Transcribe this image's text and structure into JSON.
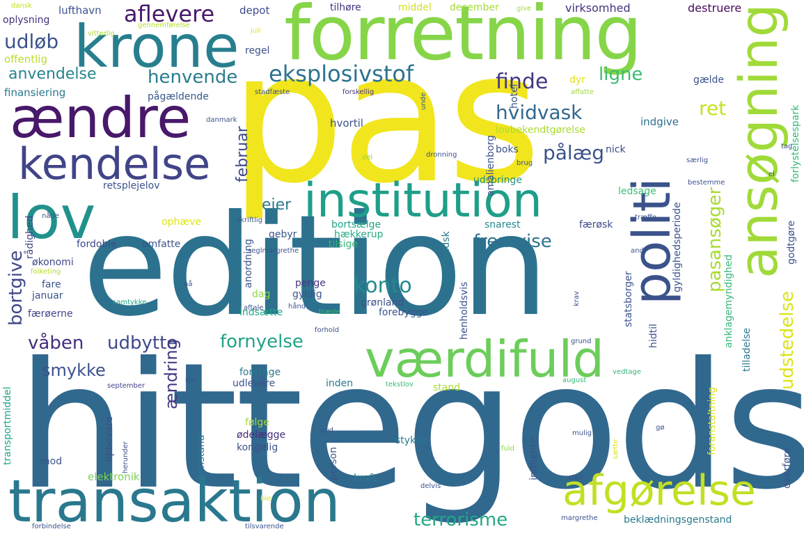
{
  "palette": {
    "yellow": "#f1e51d",
    "lime": "#a0da39",
    "green": "#75d054",
    "teal_green": "#2fb47c",
    "teal": "#20a486",
    "cyan": "#1f9e89",
    "blue_teal": "#277f8e",
    "steel": "#31688e",
    "blue": "#3b528b",
    "indigo": "#453781",
    "purple": "#48186a",
    "pale_yellow": "#dde318"
  },
  "words": [
    {
      "text": "hittegods",
      "color": "#31688e"
    },
    {
      "text": "edition",
      "color": "#2c728e"
    },
    {
      "text": "pas",
      "color": "#f1e51d"
    },
    {
      "text": "forretning",
      "color": "#86d549"
    },
    {
      "text": "krone",
      "color": "#277f8e"
    },
    {
      "text": "ændre",
      "color": "#48186a"
    },
    {
      "text": "kendelse",
      "color": "#414487"
    },
    {
      "text": "lov",
      "color": "#21918c"
    },
    {
      "text": "institution",
      "color": "#1f9e89"
    },
    {
      "text": "transaktion",
      "color": "#2a788e"
    },
    {
      "text": "værdifuld",
      "color": "#6ccd5a"
    },
    {
      "text": "afgørelse",
      "color": "#c2df23"
    },
    {
      "text": "ansøgning",
      "color": "#a0da39"
    },
    {
      "text": "politi",
      "color": "#3b528b"
    },
    {
      "text": "eksplosivstof",
      "color": "#2c728e"
    },
    {
      "text": "aflevere",
      "color": "#48186a"
    },
    {
      "text": "udløb",
      "color": "#3b528b"
    },
    {
      "text": "anvendelse",
      "color": "#25848e"
    },
    {
      "text": "henvende",
      "color": "#287c8e"
    },
    {
      "text": "finde",
      "color": "#453781"
    },
    {
      "text": "ligne",
      "color": "#3dbc74"
    },
    {
      "text": "hvidvask",
      "color": "#31688e"
    },
    {
      "text": "pålæg",
      "color": "#3b528b"
    },
    {
      "text": "ret",
      "color": "#c8e020"
    },
    {
      "text": "pasansøger",
      "color": "#a8db34"
    },
    {
      "text": "udstedelse",
      "color": "#dde318"
    },
    {
      "text": "februar",
      "color": "#3e4989"
    },
    {
      "text": "ejer",
      "color": "#2a788e"
    },
    {
      "text": "fremvise",
      "color": "#2c728e"
    },
    {
      "text": "bortgive",
      "color": "#3f4788"
    },
    {
      "text": "konto",
      "color": "#238a8d"
    },
    {
      "text": "fornyelse",
      "color": "#20a486"
    },
    {
      "text": "våben",
      "color": "#472d7b"
    },
    {
      "text": "udbytte",
      "color": "#3e4989"
    },
    {
      "text": "smykke",
      "color": "#3b528b"
    },
    {
      "text": "ændring",
      "color": "#443a83"
    },
    {
      "text": "terrorisme",
      "color": "#22a785"
    },
    {
      "text": "oplysning",
      "color": "#46307e"
    },
    {
      "text": "offentlig",
      "color": "#b5de2b"
    },
    {
      "text": "finansiering",
      "color": "#2a788e"
    },
    {
      "text": "lufthavn",
      "color": "#3b528b"
    },
    {
      "text": "depot",
      "color": "#3e4989"
    },
    {
      "text": "tilhøre",
      "color": "#453781"
    },
    {
      "text": "middel",
      "color": "#d0e11c"
    },
    {
      "text": "december",
      "color": "#a5db36"
    },
    {
      "text": "virksomhed",
      "color": "#46307e"
    },
    {
      "text": "destruere",
      "color": "#46085c"
    },
    {
      "text": "regel",
      "color": "#3b528b"
    },
    {
      "text": "pågældende",
      "color": "#38588c"
    },
    {
      "text": "hvortil",
      "color": "#3b528b"
    },
    {
      "text": "lovbekendtgørelse",
      "color": "#a8db34"
    },
    {
      "text": "indgive",
      "color": "#2e6f8e"
    },
    {
      "text": "gælde",
      "color": "#3b528b"
    },
    {
      "text": "boks",
      "color": "#3b528b"
    },
    {
      "text": "nick",
      "color": "#3e4989"
    },
    {
      "text": "retsplejelov",
      "color": "#3b528b"
    },
    {
      "text": "udspringe",
      "color": "#21918c"
    },
    {
      "text": "ledsage",
      "color": "#3dbc74"
    },
    {
      "text": "ophæve",
      "color": "#dde318"
    },
    {
      "text": "bortsælge",
      "color": "#20a486"
    },
    {
      "text": "snarest",
      "color": "#238a8d"
    },
    {
      "text": "gebyr",
      "color": "#3b528b"
    },
    {
      "text": "hækkerup",
      "color": "#25ab82"
    },
    {
      "text": "tilsige",
      "color": "#35b779"
    },
    {
      "text": "færøsk",
      "color": "#3e4989"
    },
    {
      "text": "fordoble",
      "color": "#3e4989"
    },
    {
      "text": "omfatte",
      "color": "#3b528b"
    },
    {
      "text": "økonomi",
      "color": "#3e4989"
    },
    {
      "text": "fare",
      "color": "#3b528b"
    },
    {
      "text": "januar",
      "color": "#3b528b"
    },
    {
      "text": "færøerne",
      "color": "#414487"
    },
    {
      "text": "penge",
      "color": "#453781"
    },
    {
      "text": "gyldig",
      "color": "#3b528b"
    },
    {
      "text": "grønland",
      "color": "#3b528b"
    },
    {
      "text": "dag",
      "color": "#8fd744"
    },
    {
      "text": "indsætte",
      "color": "#20a486"
    },
    {
      "text": "forebygge",
      "color": "#3b528b"
    },
    {
      "text": "foretage",
      "color": "#2a788e"
    },
    {
      "text": "udlevere",
      "color": "#3b528b"
    },
    {
      "text": "inden",
      "color": "#2a788e"
    },
    {
      "text": "stand",
      "color": "#a8db34"
    },
    {
      "text": "følge",
      "color": "#a0da39"
    },
    {
      "text": "ødelægge",
      "color": "#472d7b"
    },
    {
      "text": "kongelig",
      "color": "#3b528b"
    },
    {
      "text": "stykke",
      "color": "#2a788e"
    },
    {
      "text": "mod",
      "color": "#3b528b"
    },
    {
      "text": "elektronik",
      "color": "#7ad151"
    },
    {
      "text": "kraft",
      "color": "#2a788e"
    },
    {
      "text": "beklædningsgenstand",
      "color": "#2a788e"
    },
    {
      "text": "gennemførelse",
      "color": "#b5de2b"
    },
    {
      "text": "vitterlig",
      "color": "#a8db34"
    },
    {
      "text": "dansk",
      "color": "#c2df23"
    },
    {
      "text": "juli",
      "color": "#dde318"
    },
    {
      "text": "give",
      "color": "#9fda3a"
    },
    {
      "text": "stadfæste",
      "color": "#3b528b"
    },
    {
      "text": "forskellig",
      "color": "#46307e"
    },
    {
      "text": "affatte",
      "color": "#a0da39"
    },
    {
      "text": "dyr",
      "color": "#dde318"
    },
    {
      "text": "danmark",
      "color": "#3b528b"
    },
    {
      "text": "del",
      "color": "#8fd744"
    },
    {
      "text": "dronning",
      "color": "#3b528b"
    },
    {
      "text": "brug",
      "color": "#3b528b"
    },
    {
      "text": "særlig",
      "color": "#3b528b"
    },
    {
      "text": "tag",
      "color": "#3b528b"
    },
    {
      "text": "bestemme",
      "color": "#3b528b"
    },
    {
      "text": "el",
      "color": "#3b528b"
    },
    {
      "text": "nåde",
      "color": "#3b528b"
    },
    {
      "text": "skriftlig",
      "color": "#3b528b"
    },
    {
      "text": "træffe",
      "color": "#3b528b"
    },
    {
      "text": "seglmargrethe",
      "color": "#3b528b"
    },
    {
      "text": "and",
      "color": "#3b528b"
    },
    {
      "text": "folketing",
      "color": "#b5de2b"
    },
    {
      "text": "nå",
      "color": "#3b528b"
    },
    {
      "text": "samtykke",
      "color": "#20a486"
    },
    {
      "text": "aftale",
      "color": "#3b528b"
    },
    {
      "text": "hånd",
      "color": "#3b528b"
    },
    {
      "text": "træde",
      "color": "#35b779"
    },
    {
      "text": "forhold",
      "color": "#3b528b"
    },
    {
      "text": "grund",
      "color": "#3b528b"
    },
    {
      "text": "vedtage",
      "color": "#35b779"
    },
    {
      "text": "september",
      "color": "#414487"
    },
    {
      "text": "sin",
      "color": "#3b528b"
    },
    {
      "text": "tekstlov",
      "color": "#35b779"
    },
    {
      "text": "august",
      "color": "#35b779"
    },
    {
      "text": "gud",
      "color": "#3b528b"
    },
    {
      "text": "mulig",
      "color": "#3b528b"
    },
    {
      "text": "gø",
      "color": "#3b528b"
    },
    {
      "text": "fuld",
      "color": "#8fd744"
    },
    {
      "text": "sted",
      "color": "#3b528b"
    },
    {
      "text": "delvis",
      "color": "#3b528b"
    },
    {
      "text": "ble",
      "color": "#dde318"
    },
    {
      "text": "margrethe",
      "color": "#3b528b"
    },
    {
      "text": "forbindelse",
      "color": "#3b528b"
    },
    {
      "text": "tilsvarende",
      "color": "#3b528b"
    },
    {
      "text": "rådighed",
      "color": "#414487"
    },
    {
      "text": "transportmiddel",
      "color": "#20a486"
    },
    {
      "text": "opbevare",
      "color": "#3b528b"
    },
    {
      "text": "herunder",
      "color": "#3b528b"
    },
    {
      "text": "genstand",
      "color": "#2a788e"
    },
    {
      "text": "person",
      "color": "#3b528b"
    },
    {
      "text": "indhente",
      "color": "#3b528b"
    },
    {
      "text": "overføre",
      "color": "#3b528b"
    },
    {
      "text": "hotel",
      "color": "#3b528b"
    },
    {
      "text": "unde",
      "color": "#3b528b"
    },
    {
      "text": "amalienborg",
      "color": "#3b528b"
    },
    {
      "text": "gyldighedsperiode",
      "color": "#3b528b"
    },
    {
      "text": "anklagemyndighed",
      "color": "#35b779"
    },
    {
      "text": "forlystelsespark",
      "color": "#35b779"
    },
    {
      "text": "godtgøre",
      "color": "#3b528b"
    },
    {
      "text": "grønlandsk",
      "color": "#2a788e"
    },
    {
      "text": "henholdsvis",
      "color": "#3b528b"
    },
    {
      "text": "statsborger",
      "color": "#3b528b"
    },
    {
      "text": "hidtil",
      "color": "#3b528b"
    },
    {
      "text": "foranstaltning",
      "color": "#dde318"
    },
    {
      "text": "tilladelse",
      "color": "#2a788e"
    },
    {
      "text": "krav",
      "color": "#3b528b"
    },
    {
      "text": "anordning",
      "color": "#3b528b"
    },
    {
      "text": "sætte",
      "color": "#dde318"
    }
  ]
}
